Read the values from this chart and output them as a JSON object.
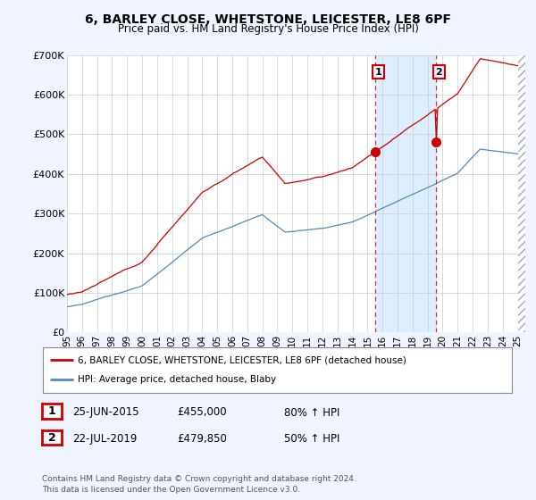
{
  "title": "6, BARLEY CLOSE, WHETSTONE, LEICESTER, LE8 6PF",
  "subtitle": "Price paid vs. HM Land Registry's House Price Index (HPI)",
  "legend_line1": "6, BARLEY CLOSE, WHETSTONE, LEICESTER, LE8 6PF (detached house)",
  "legend_line2": "HPI: Average price, detached house, Blaby",
  "footnote": "Contains HM Land Registry data © Crown copyright and database right 2024.\nThis data is licensed under the Open Government Licence v3.0.",
  "sale1_label": "1",
  "sale1_date": "25-JUN-2015",
  "sale1_price": "£455,000",
  "sale1_hpi": "80% ↑ HPI",
  "sale1_year": 2015.5,
  "sale1_value": 455000,
  "sale2_label": "2",
  "sale2_date": "22-JUL-2019",
  "sale2_price": "£479,850",
  "sale2_hpi": "50% ↑ HPI",
  "sale2_year": 2019.55,
  "sale2_value": 479850,
  "red_color": "#cc0000",
  "blue_color": "#5588bb",
  "shade_color": "#ddeeff",
  "background_color": "#f0f4ff",
  "plot_bg": "#ffffff",
  "ylim": [
    0,
    700000
  ],
  "xlim_start": 1995.0,
  "xlim_end": 2025.5,
  "yticks": [
    0,
    100000,
    200000,
    300000,
    400000,
    500000,
    600000,
    700000
  ],
  "ytick_labels": [
    "£0",
    "£100K",
    "£200K",
    "£300K",
    "£400K",
    "£500K",
    "£600K",
    "£700K"
  ],
  "xtick_labels": [
    "95",
    "96",
    "97",
    "98",
    "99",
    "00",
    "01",
    "02",
    "03",
    "04",
    "05",
    "06",
    "07",
    "08",
    "09",
    "10",
    "11",
    "12",
    "13",
    "14",
    "15",
    "16",
    "17",
    "18",
    "19",
    "20",
    "21",
    "22",
    "23",
    "24",
    "25"
  ]
}
